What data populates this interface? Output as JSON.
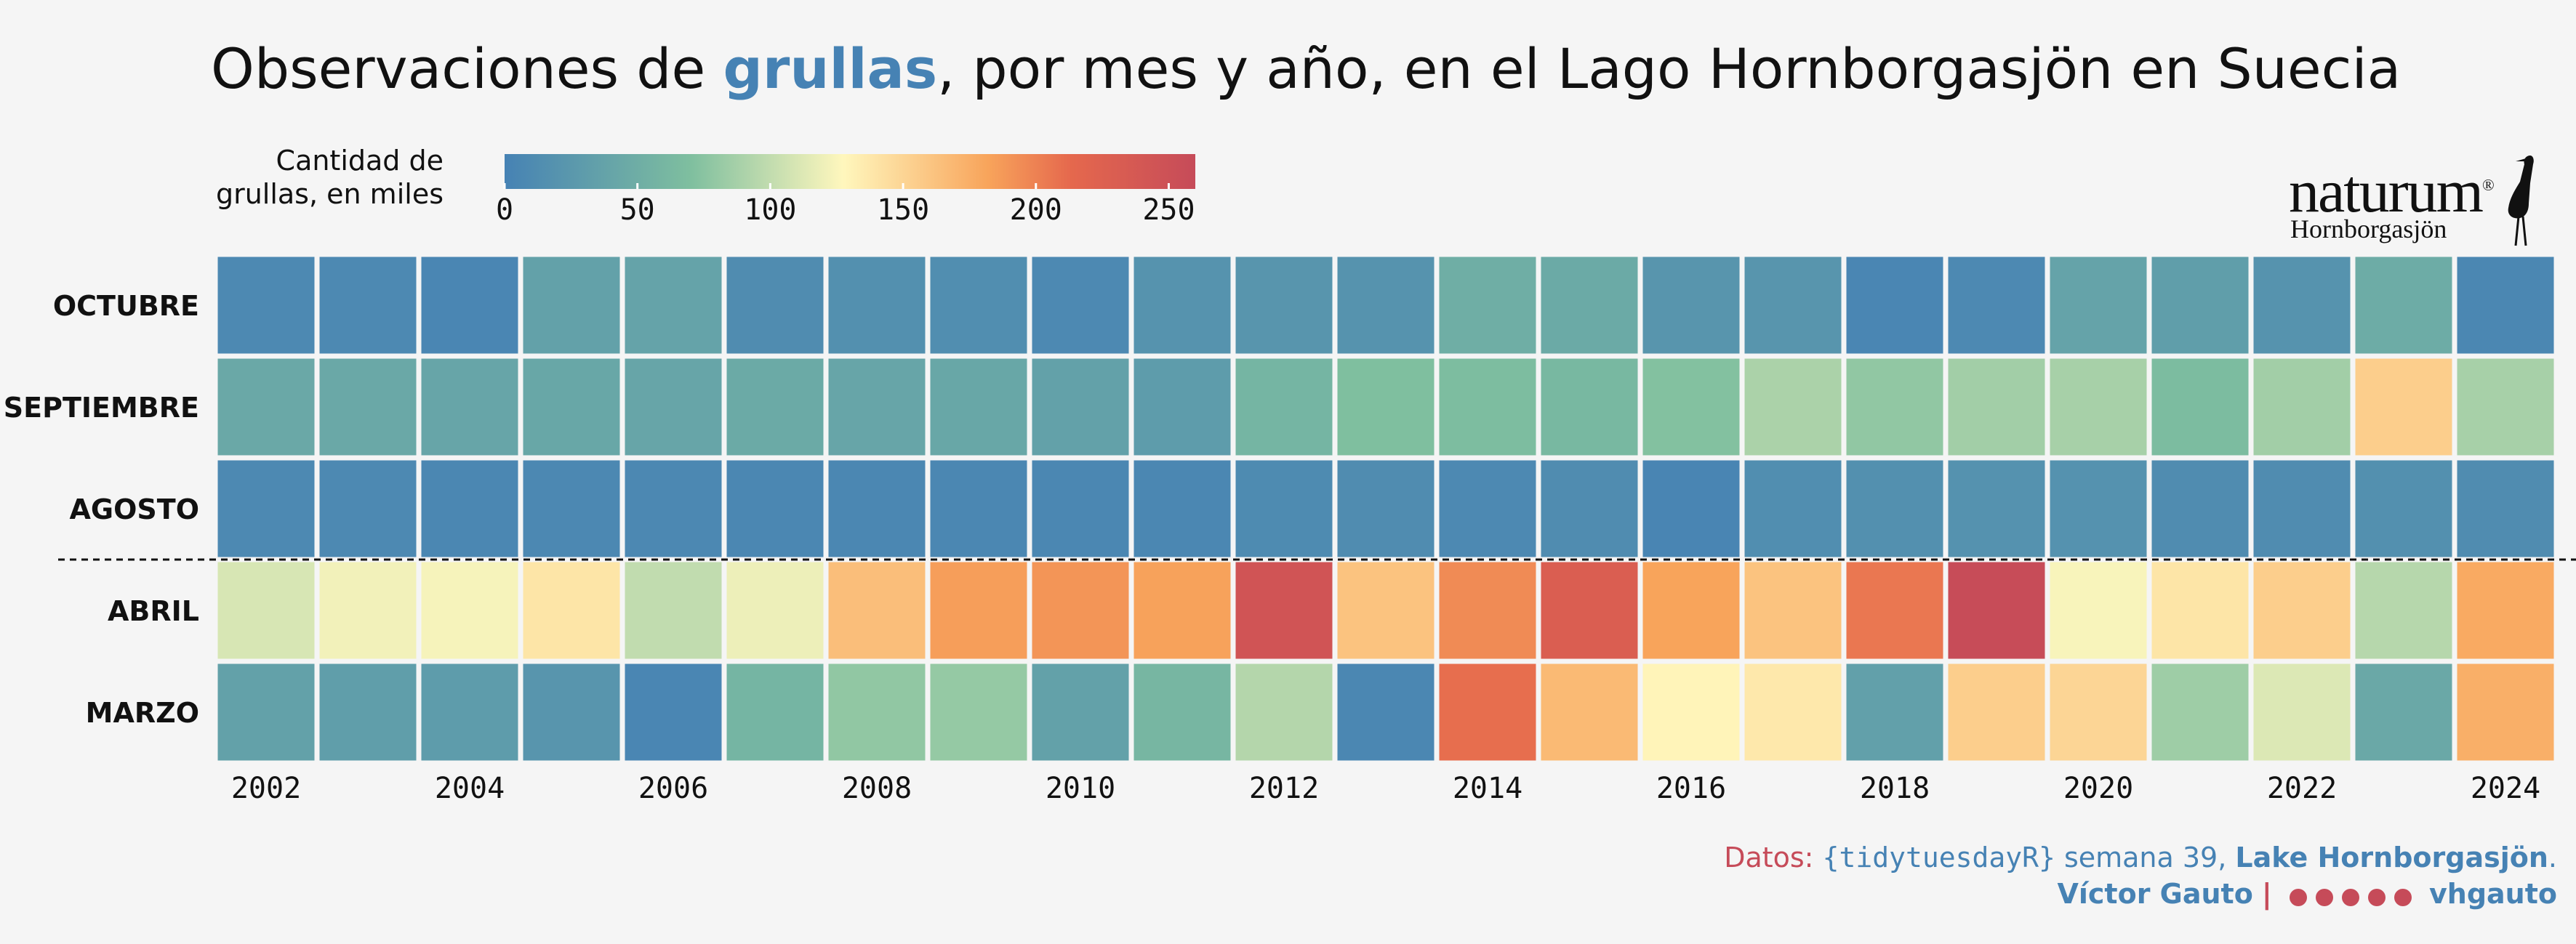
{
  "title": {
    "before": "Observaciones de ",
    "highlight": "grullas",
    "after": ", por mes y año, en el Lago Hornborgasjön en Suecia"
  },
  "legend": {
    "title_line1": "Cantidad de",
    "title_line2": "grullas, en miles",
    "ticks": [
      "0",
      "50",
      "100",
      "150",
      "200",
      "250"
    ]
  },
  "logo": {
    "word": "naturum",
    "reg": "®",
    "sub": "Hornborgasjön"
  },
  "caption": {
    "prefix": "Datos: ",
    "pkg": "{tidytuesdayR}",
    "week": " semana 39, ",
    "source": "Lake Hornborgasjön",
    "period": ".",
    "author": "Víctor Gauto",
    "sep": "|",
    "handle": "vhgauto",
    "icons": [
      "github-icon",
      "twitter-icon",
      "instagram-icon",
      "mastodon-icon",
      "bluesky-icon"
    ]
  },
  "colors": {
    "scale": [
      "#4682b4",
      "#7fbf9f",
      "#fff7bd",
      "#f8a45b",
      "#e5684d",
      "#c64b59"
    ],
    "title_highlight": "#4682b4",
    "caption_red": "#c64b59"
  },
  "chart_data": {
    "type": "heatmap",
    "x": [
      "2002",
      "2003",
      "2004",
      "2005",
      "2006",
      "2007",
      "2008",
      "2009",
      "2010",
      "2011",
      "2012",
      "2013",
      "2014",
      "2015",
      "2016",
      "2017",
      "2018",
      "2019",
      "2020",
      "2021",
      "2022",
      "2023",
      "2024"
    ],
    "x_tick_labels": [
      "2002",
      "2004",
      "2006",
      "2008",
      "2010",
      "2012",
      "2014",
      "2016",
      "2018",
      "2020",
      "2022",
      "2024"
    ],
    "y": [
      "OCTUBRE",
      "SEPTIEMBRE",
      "AGOSTO",
      "ABRIL",
      "MARZO"
    ],
    "value_range": [
      0,
      260
    ],
    "values": [
      [
        8,
        8,
        5,
        36,
        38,
        12,
        16,
        14,
        8,
        20,
        22,
        20,
        50,
        46,
        22,
        22,
        5,
        8,
        38,
        32,
        20,
        48,
        6
      ],
      [
        44,
        44,
        40,
        42,
        40,
        46,
        40,
        42,
        36,
        30,
        58,
        70,
        68,
        62,
        72,
        90,
        78,
        86,
        88,
        66,
        86,
        155,
        88
      ],
      [
        8,
        8,
        6,
        7,
        7,
        6,
        6,
        6,
        6,
        6,
        10,
        12,
        8,
        12,
        4,
        14,
        16,
        18,
        18,
        12,
        12,
        16,
        12
      ],
      [
        110,
        122,
        124,
        140,
        100,
        120,
        165,
        185,
        190,
        183,
        245,
        162,
        195,
        230,
        182,
        162,
        205,
        258,
        125,
        140,
        155,
        95,
        178
      ],
      [
        36,
        32,
        30,
        22,
        5,
        58,
        78,
        80,
        36,
        60,
        94,
        6,
        210,
        168,
        130,
        138,
        34,
        155,
        150,
        84,
        112,
        44,
        175
      ]
    ],
    "legend_title": "Cantidad de grullas, en miles",
    "legend_position": "top-left"
  }
}
